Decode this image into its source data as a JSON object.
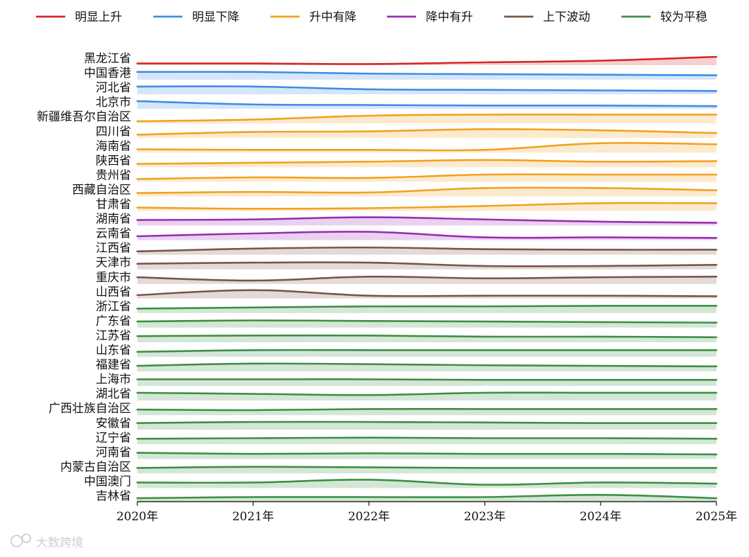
{
  "chart_data": {
    "type": "area",
    "x": [
      "2020年",
      "2021年",
      "2022年",
      "2023年",
      "2024年",
      "2025年"
    ],
    "legend_position": "top",
    "groups": [
      {
        "key": "up",
        "name": "明显上升",
        "color": "#d62728"
      },
      {
        "key": "down",
        "name": "明显下降",
        "color": "#3f8de8"
      },
      {
        "key": "updown",
        "name": "升中有降",
        "color": "#f2a11f"
      },
      {
        "key": "downup",
        "name": "降中有升",
        "color": "#9a2db4"
      },
      {
        "key": "wave",
        "name": "上下波动",
        "color": "#7a5549"
      },
      {
        "key": "flat",
        "name": "较为平稳",
        "color": "#3d8f44"
      }
    ],
    "series": [
      {
        "name": "黑龙江省",
        "group": "up",
        "values": [
          0.15,
          0.15,
          0.1,
          0.25,
          0.4,
          0.75
        ]
      },
      {
        "name": "中国香港",
        "group": "down",
        "values": [
          0.7,
          0.7,
          0.55,
          0.5,
          0.45,
          0.4
        ]
      },
      {
        "name": "河北省",
        "group": "down",
        "values": [
          0.7,
          0.7,
          0.45,
          0.4,
          0.35,
          0.3
        ]
      },
      {
        "name": "北京市",
        "group": "down",
        "values": [
          0.7,
          0.4,
          0.35,
          0.3,
          0.3,
          0.25
        ]
      },
      {
        "name": "新疆维吾尔自治区",
        "group": "updown",
        "values": [
          0.2,
          0.35,
          0.7,
          0.8,
          0.8,
          0.8
        ]
      },
      {
        "name": "四川省",
        "group": "updown",
        "values": [
          0.3,
          0.55,
          0.6,
          0.8,
          0.7,
          0.45
        ]
      },
      {
        "name": "海南省",
        "group": "updown",
        "values": [
          0.3,
          0.25,
          0.25,
          0.25,
          0.85,
          0.75
        ]
      },
      {
        "name": "陕西省",
        "group": "updown",
        "values": [
          0.3,
          0.4,
          0.5,
          0.65,
          0.5,
          0.55
        ]
      },
      {
        "name": "贵州省",
        "group": "updown",
        "values": [
          0.25,
          0.4,
          0.35,
          0.65,
          0.65,
          0.65
        ]
      },
      {
        "name": "西藏自治区",
        "group": "updown",
        "values": [
          0.3,
          0.4,
          0.35,
          0.75,
          0.75,
          0.55
        ]
      },
      {
        "name": "甘肃省",
        "group": "updown",
        "values": [
          0.3,
          0.2,
          0.25,
          0.45,
          0.7,
          0.7
        ]
      },
      {
        "name": "湖南省",
        "group": "downup",
        "values": [
          0.5,
          0.55,
          0.75,
          0.55,
          0.35,
          0.25
        ]
      },
      {
        "name": "云南省",
        "group": "downup",
        "values": [
          0.35,
          0.6,
          0.75,
          0.25,
          0.25,
          0.2
        ]
      },
      {
        "name": "江西省",
        "group": "wave",
        "values": [
          0.3,
          0.55,
          0.65,
          0.5,
          0.45,
          0.45
        ]
      },
      {
        "name": "天津市",
        "group": "wave",
        "values": [
          0.5,
          0.6,
          0.6,
          0.3,
          0.3,
          0.4
        ]
      },
      {
        "name": "重庆市",
        "group": "wave",
        "values": [
          0.6,
          0.3,
          0.65,
          0.5,
          0.6,
          0.65
        ]
      },
      {
        "name": "山西省",
        "group": "wave",
        "values": [
          0.3,
          0.75,
          0.25,
          0.25,
          0.25,
          0.2
        ]
      },
      {
        "name": "浙江省",
        "group": "flat",
        "values": [
          0.4,
          0.5,
          0.6,
          0.6,
          0.65,
          0.65
        ]
      },
      {
        "name": "广东省",
        "group": "flat",
        "values": [
          0.55,
          0.65,
          0.6,
          0.55,
          0.5,
          0.45
        ]
      },
      {
        "name": "江苏省",
        "group": "flat",
        "values": [
          0.55,
          0.6,
          0.6,
          0.5,
          0.5,
          0.45
        ]
      },
      {
        "name": "山东省",
        "group": "flat",
        "values": [
          0.45,
          0.6,
          0.6,
          0.6,
          0.6,
          0.6
        ]
      },
      {
        "name": "福建省",
        "group": "flat",
        "values": [
          0.5,
          0.7,
          0.65,
          0.55,
          0.5,
          0.45
        ]
      },
      {
        "name": "上海市",
        "group": "flat",
        "values": [
          0.6,
          0.6,
          0.6,
          0.55,
          0.55,
          0.55
        ]
      },
      {
        "name": "湖北省",
        "group": "flat",
        "values": [
          0.7,
          0.6,
          0.5,
          0.7,
          0.7,
          0.7
        ]
      },
      {
        "name": "广西壮族自治区",
        "group": "flat",
        "values": [
          0.5,
          0.45,
          0.55,
          0.55,
          0.55,
          0.55
        ]
      },
      {
        "name": "安徽省",
        "group": "flat",
        "values": [
          0.6,
          0.7,
          0.7,
          0.65,
          0.6,
          0.6
        ]
      },
      {
        "name": "辽宁省",
        "group": "flat",
        "values": [
          0.5,
          0.55,
          0.6,
          0.55,
          0.55,
          0.5
        ]
      },
      {
        "name": "河南省",
        "group": "flat",
        "values": [
          0.55,
          0.45,
          0.5,
          0.45,
          0.45,
          0.4
        ]
      },
      {
        "name": "内蒙古自治区",
        "group": "flat",
        "values": [
          0.5,
          0.6,
          0.55,
          0.5,
          0.5,
          0.5
        ]
      },
      {
        "name": "中国澳门",
        "group": "flat",
        "values": [
          0.5,
          0.5,
          0.75,
          0.3,
          0.5,
          0.4
        ]
      },
      {
        "name": "吉林省",
        "group": "flat",
        "values": [
          0.4,
          0.5,
          0.5,
          0.5,
          0.7,
          0.4
        ]
      }
    ]
  },
  "watermark": {
    "text": "大数跨境"
  }
}
